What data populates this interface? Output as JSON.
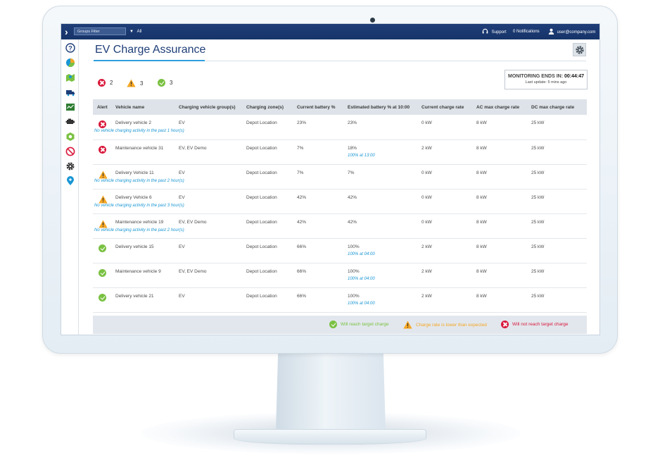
{
  "topbar": {
    "groups_filter": "Groups Filter",
    "all_label": "All",
    "support": "Support",
    "notifications": "0 Notifications",
    "user": "user@company.com"
  },
  "sidebar": {
    "items": [
      {
        "icon": "help-icon",
        "color": "#1f3e78"
      },
      {
        "icon": "pie-chart-icon",
        "color": "#f5a623"
      },
      {
        "icon": "map-icon",
        "color": "#7ac142"
      },
      {
        "icon": "truck-icon",
        "color": "#1f3e78"
      },
      {
        "icon": "activity-chart-icon",
        "color": "#2e7d32"
      },
      {
        "icon": "engine-icon",
        "color": "#333333"
      },
      {
        "icon": "rules-icon",
        "color": "#7ac142"
      },
      {
        "icon": "no-entry-icon",
        "color": "#d9183b"
      },
      {
        "icon": "settings-icon",
        "color": "#333333"
      },
      {
        "icon": "location-pin-icon",
        "color": "#1a96d4"
      }
    ]
  },
  "page": {
    "title": "EV Charge Assurance"
  },
  "summary": {
    "red_count": "2",
    "warning_count": "3",
    "green_count": "3"
  },
  "monitoring": {
    "label": "MONITORING ENDS IN: ",
    "time": "00:44:47",
    "last_update": "Last update: 5 mins ago"
  },
  "table": {
    "headers": [
      "Alert",
      "Vehicle name",
      "Charging vehicle group(s)",
      "Charging zone(s)",
      "Current battery %",
      "Estimated battery % at 10:00",
      "Current charge rate",
      "AC max charge rate",
      "DC max charge rate"
    ],
    "rows": [
      {
        "status": "red",
        "vehicle": "Delivery vehicle 2",
        "group": "EV",
        "zone": "Depot Location",
        "battery": "23%",
        "estimated": "23%",
        "estimated_note": "",
        "rate": "0 kW",
        "ac": "8 kW",
        "dc": "25 kW",
        "note": "No vehicle charging activity in the past 1 hour(s)"
      },
      {
        "status": "red",
        "vehicle": "Maintenance vehicle 31",
        "group": "EV, EV Demo",
        "zone": "Depot Location",
        "battery": "7%",
        "estimated": "18%",
        "estimated_note": "100% at 13:00",
        "rate": "2 kW",
        "ac": "8 kW",
        "dc": "25 kW",
        "note": ""
      },
      {
        "status": "warn",
        "vehicle": "Delivery Vehicle 11",
        "group": "EV",
        "zone": "Depot Location",
        "battery": "7%",
        "estimated": "7%",
        "estimated_note": "",
        "rate": "0 kW",
        "ac": "8 kW",
        "dc": "25 kW",
        "note": "No vehicle charging activity in the past 2 hour(s)"
      },
      {
        "status": "warn",
        "vehicle": "Delivery Vehicle 6",
        "group": "EV",
        "zone": "Depot Location",
        "battery": "42%",
        "estimated": "42%",
        "estimated_note": "",
        "rate": "0 kW",
        "ac": "8 kW",
        "dc": "25 kW",
        "note": "No vehicle charging activity in the past 3 hour(s)"
      },
      {
        "status": "warn",
        "vehicle": "Maintenance vehicle 19",
        "group": "EV, EV Demo",
        "zone": "Depot Location",
        "battery": "42%",
        "estimated": "42%",
        "estimated_note": "",
        "rate": "0 kW",
        "ac": "8 kW",
        "dc": "25 kW",
        "note": "No vehicle charging activity in the past 2 hour(s)"
      },
      {
        "status": "green",
        "vehicle": "Delivery vehicle 15",
        "group": "EV",
        "zone": "Depot Location",
        "battery": "66%",
        "estimated": "100%",
        "estimated_note": "100% at 04:00",
        "rate": "2 kW",
        "ac": "8 kW",
        "dc": "25 kW",
        "note": ""
      },
      {
        "status": "green",
        "vehicle": "Maintenance vehicle 9",
        "group": "EV, EV Demo",
        "zone": "Depot Location",
        "battery": "66%",
        "estimated": "100%",
        "estimated_note": "100% at 04:00",
        "rate": "2 kW",
        "ac": "8 kW",
        "dc": "25 kW",
        "note": ""
      },
      {
        "status": "green",
        "vehicle": "Delivery vehicle 21",
        "group": "EV",
        "zone": "Depot Location",
        "battery": "66%",
        "estimated": "100%",
        "estimated_note": "100% at 04:00",
        "rate": "2 kW",
        "ac": "8 kW",
        "dc": "25 kW",
        "note": ""
      }
    ]
  },
  "legend": {
    "green": "Will reach target charge",
    "warn": "Charge rate is lower than expected",
    "red": "Will not reach target charge",
    "green_color": "#7ac142",
    "warn_color": "#f5a623",
    "red_color": "#d9183b"
  }
}
